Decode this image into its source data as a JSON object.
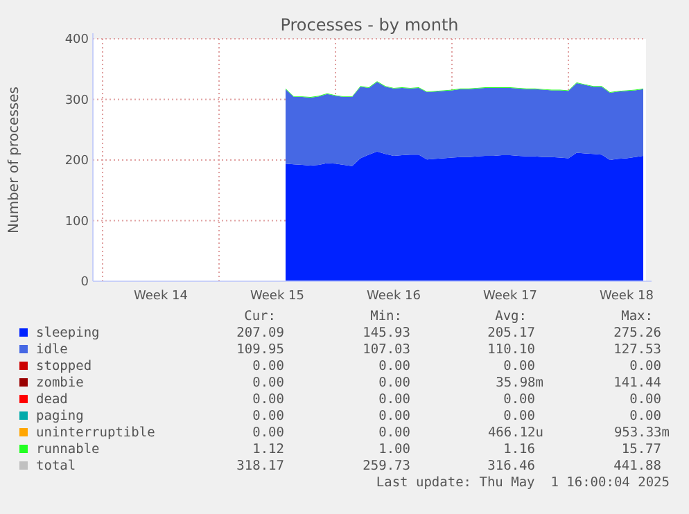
{
  "chart_data": {
    "type": "area",
    "stacked": true,
    "title": "Processes - by month",
    "ylabel": "Number of processes",
    "legend": "bottom",
    "grid": true,
    "categories": [
      null,
      null,
      null,
      null,
      null,
      null,
      null,
      null,
      "Week 14",
      null,
      null,
      null,
      null,
      null,
      null,
      null,
      null,
      null,
      null,
      null,
      null,
      null,
      "Week 15",
      null,
      null,
      null,
      null,
      null,
      null,
      null,
      null,
      null,
      null,
      null,
      null,
      null,
      "Week 16",
      null,
      null,
      null,
      null,
      null,
      null,
      null,
      null,
      null,
      null,
      null,
      null,
      null,
      "Week 17",
      null,
      null,
      null,
      null,
      null,
      null,
      null,
      null,
      null,
      null,
      null,
      null,
      null,
      "Week 18",
      null,
      null
    ],
    "ylim": [
      0,
      400
    ],
    "yticks": [
      0,
      100,
      200,
      300,
      400
    ],
    "series": [
      {
        "name": "sleeping",
        "color": "#0022ff",
        "values": [
          null,
          null,
          null,
          null,
          null,
          null,
          null,
          null,
          null,
          null,
          null,
          null,
          null,
          null,
          null,
          null,
          null,
          null,
          null,
          null,
          null,
          null,
          null,
          194,
          193,
          192,
          191,
          192,
          195,
          194,
          192,
          190,
          203,
          209,
          214,
          210,
          207,
          208,
          209,
          209,
          201,
          202,
          203,
          204,
          205,
          205,
          206,
          207,
          207,
          208,
          208,
          207,
          206,
          206,
          205,
          205,
          204,
          203,
          212,
          211,
          210,
          209,
          200,
          202,
          203,
          205,
          207
        ]
      },
      {
        "name": "idle",
        "color": "#4668e4",
        "values": [
          null,
          null,
          null,
          null,
          null,
          null,
          null,
          null,
          null,
          null,
          null,
          null,
          null,
          null,
          null,
          null,
          null,
          null,
          null,
          null,
          null,
          null,
          null,
          123,
          111,
          112,
          112,
          113,
          114,
          112,
          112,
          114,
          118,
          110,
          115,
          111,
          111,
          111,
          109,
          110,
          111,
          111,
          111,
          111,
          112,
          112,
          112,
          112,
          112,
          111,
          111,
          111,
          111,
          111,
          111,
          110,
          111,
          111,
          115,
          113,
          111,
          112,
          111,
          111,
          111,
          110,
          110
        ]
      },
      {
        "name": "stopped",
        "color": "#cc0000",
        "values": [
          null,
          null,
          null,
          null,
          null,
          null,
          null,
          null,
          null,
          null,
          null,
          null,
          null,
          null,
          null,
          null,
          null,
          null,
          null,
          null,
          null,
          null,
          null,
          null,
          null,
          null,
          null,
          null,
          null,
          null,
          null,
          null,
          null,
          null,
          null,
          null,
          null,
          null,
          null,
          null,
          null,
          null,
          null,
          null,
          null,
          null,
          null,
          null,
          null,
          null,
          null,
          null,
          null,
          null,
          null,
          null,
          null,
          null,
          null,
          null,
          null,
          null,
          null,
          null,
          null,
          null,
          null
        ]
      },
      {
        "name": "zombie",
        "color": "#990000",
        "values": [
          null,
          null,
          null,
          null,
          null,
          null,
          null,
          null,
          null,
          null,
          null,
          null,
          null,
          null,
          null,
          null,
          null,
          null,
          null,
          null,
          null,
          null,
          null,
          null,
          null,
          null,
          null,
          null,
          null,
          null,
          null,
          null,
          null,
          null,
          null,
          null,
          null,
          null,
          null,
          null,
          null,
          null,
          null,
          null,
          null,
          null,
          null,
          null,
          null,
          null,
          null,
          null,
          null,
          null,
          null,
          null,
          null,
          null,
          null,
          null,
          null,
          null,
          null,
          null,
          null,
          null,
          null
        ]
      },
      {
        "name": "dead",
        "color": "#ff0000",
        "values": [
          null,
          null,
          null,
          null,
          null,
          null,
          null,
          null,
          null,
          null,
          null,
          null,
          null,
          null,
          null,
          null,
          null,
          null,
          null,
          null,
          null,
          null,
          null,
          null,
          null,
          null,
          null,
          null,
          null,
          null,
          null,
          null,
          null,
          null,
          null,
          null,
          null,
          null,
          null,
          null,
          null,
          null,
          null,
          null,
          null,
          null,
          null,
          null,
          null,
          null,
          null,
          null,
          null,
          null,
          null,
          null,
          null,
          null,
          null,
          null,
          null,
          null,
          null,
          null,
          null,
          null,
          null
        ]
      },
      {
        "name": "paging",
        "color": "#00aaaa",
        "values": [
          null,
          null,
          null,
          null,
          null,
          null,
          null,
          null,
          null,
          null,
          null,
          null,
          null,
          null,
          null,
          null,
          null,
          null,
          null,
          null,
          null,
          null,
          null,
          null,
          null,
          null,
          null,
          null,
          null,
          null,
          null,
          null,
          null,
          null,
          null,
          null,
          null,
          null,
          null,
          null,
          null,
          null,
          null,
          null,
          null,
          null,
          null,
          null,
          null,
          null,
          null,
          null,
          null,
          null,
          null,
          null,
          null,
          null,
          null,
          null,
          null,
          null,
          null,
          null,
          null,
          null,
          null
        ]
      },
      {
        "name": "uninterruptible",
        "color": "#ffa500",
        "values": [
          null,
          null,
          null,
          null,
          null,
          null,
          null,
          null,
          null,
          null,
          null,
          null,
          null,
          null,
          null,
          null,
          null,
          null,
          null,
          null,
          null,
          null,
          null,
          null,
          null,
          null,
          null,
          null,
          null,
          null,
          null,
          null,
          null,
          null,
          null,
          null,
          null,
          null,
          null,
          null,
          null,
          null,
          null,
          null,
          null,
          null,
          null,
          null,
          null,
          null,
          null,
          null,
          null,
          null,
          null,
          null,
          null,
          null,
          null,
          null,
          null,
          null,
          null,
          null,
          null,
          null,
          null
        ]
      },
      {
        "name": "runnable",
        "color": "#22ff22",
        "values": [
          null,
          null,
          null,
          null,
          null,
          null,
          null,
          null,
          null,
          null,
          null,
          null,
          null,
          null,
          null,
          null,
          null,
          null,
          null,
          null,
          null,
          null,
          null,
          1,
          1,
          1,
          1,
          1,
          1,
          1,
          1,
          1,
          1,
          1,
          1,
          1,
          1,
          1,
          1,
          1,
          1,
          1,
          1,
          1,
          1,
          1,
          1,
          1,
          1,
          1,
          1,
          1,
          1,
          1,
          1,
          1,
          1,
          1,
          1,
          1,
          1,
          1,
          1,
          1,
          1,
          1,
          1
        ]
      },
      {
        "name": "total",
        "color": "#c0c0c0",
        "values": [
          null,
          null,
          null,
          null,
          null,
          null,
          null,
          null,
          null,
          null,
          null,
          null,
          null,
          null,
          null,
          null,
          null,
          null,
          null,
          null,
          null,
          null,
          null,
          null,
          null,
          null,
          null,
          null,
          null,
          null,
          null,
          null,
          null,
          null,
          null,
          null,
          null,
          null,
          null,
          null,
          null,
          null,
          null,
          null,
          null,
          null,
          null,
          null,
          null,
          null,
          null,
          null,
          null,
          null,
          null,
          null,
          null,
          null,
          null,
          null,
          null,
          null,
          null,
          null,
          null,
          null,
          null
        ]
      }
    ],
    "annotations": [
      "Cur:",
      "Min:",
      "Avg:",
      "Max:",
      "207.09",
      "145.93",
      "205.17",
      "275.26",
      "109.95",
      "107.03",
      "110.10",
      "127.53",
      "0.00",
      "0.00",
      "0.00",
      "0.00",
      "0.00",
      "0.00",
      "35.98m",
      "141.44",
      "0.00",
      "0.00",
      "0.00",
      "0.00",
      "0.00",
      "0.00",
      "0.00",
      "0.00",
      "0.00",
      "0.00",
      "466.12u",
      "953.33m",
      "1.12",
      "1.00",
      "1.16",
      "15.77",
      "318.17",
      "259.73",
      "316.46",
      "441.88",
      "Last update: Thu May  1 16:00:04 2025"
    ]
  }
}
